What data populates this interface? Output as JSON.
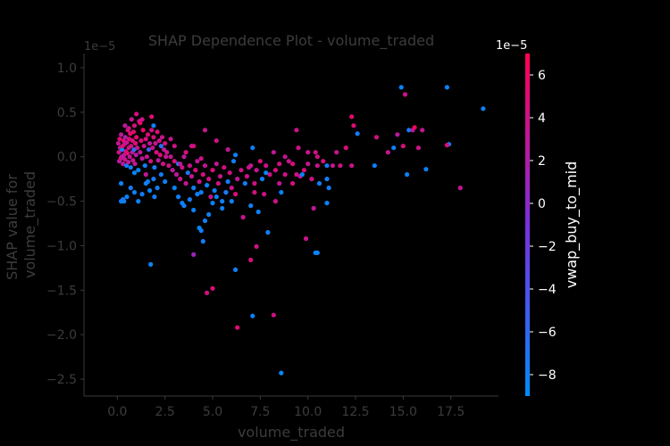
{
  "chart_data": {
    "type": "scatter",
    "title": "SHAP Dependence Plot - volume_traded",
    "xlabel": "volume_traded",
    "ylabel_line1": "SHAP value for",
    "ylabel_line2": "volume_traded",
    "y_offset_text": "1e−5",
    "xlim": [
      -1.75,
      20.0
    ],
    "ylim": [
      -2.69,
      1.16
    ],
    "x_ticks": [
      0.0,
      2.5,
      5.0,
      7.5,
      10.0,
      12.5,
      15.0,
      17.5
    ],
    "x_tick_labels": [
      "0.0",
      "2.5",
      "5.0",
      "7.5",
      "10.0",
      "12.5",
      "15.0",
      "17.5"
    ],
    "y_ticks": [
      1.0,
      0.5,
      0.0,
      -0.5,
      -1.0,
      -1.5,
      -2.0,
      -2.5
    ],
    "y_tick_labels": [
      "1.0",
      "0.5",
      "0.0",
      "−0.5",
      "−1.0",
      "−1.5",
      "−2.0",
      "−2.5"
    ],
    "grid": false,
    "colorbar": {
      "label": "vwap_buy_to_mid",
      "offset_text": "1e−5",
      "range": [
        -9.0,
        7.0
      ],
      "ticks": [
        6,
        4,
        2,
        0,
        -2,
        -4,
        -6,
        -8
      ],
      "tick_labels": [
        "6",
        "4",
        "2",
        "0",
        "−2",
        "−4",
        "−6",
        "−8"
      ],
      "colors": [
        "#008afb",
        "#7c2fdd",
        "#ff0052"
      ]
    },
    "points": [
      [
        0.05,
        0.15,
        3.2
      ],
      [
        0.08,
        0.05,
        4.1
      ],
      [
        0.1,
        -0.05,
        2.5
      ],
      [
        0.12,
        0.2,
        5.0
      ],
      [
        0.15,
        0.1,
        3.8
      ],
      [
        0.18,
        -0.02,
        4.5
      ],
      [
        0.2,
        0.25,
        2.9
      ],
      [
        0.22,
        0.0,
        3.4
      ],
      [
        0.25,
        0.08,
        -8.0
      ],
      [
        0.28,
        0.12,
        4.8
      ],
      [
        0.3,
        -0.08,
        3.0
      ],
      [
        0.33,
        0.18,
        5.5
      ],
      [
        0.35,
        0.02,
        2.2
      ],
      [
        0.38,
        0.14,
        4.0
      ],
      [
        0.4,
        -0.03,
        3.6
      ],
      [
        0.42,
        0.22,
        1.8
      ],
      [
        0.45,
        0.06,
        4.4
      ],
      [
        0.48,
        -0.1,
        -7.5
      ],
      [
        0.5,
        0.16,
        3.1
      ],
      [
        0.52,
        0.04,
        5.2
      ],
      [
        0.55,
        0.3,
        4.7
      ],
      [
        0.58,
        -0.06,
        2.6
      ],
      [
        0.6,
        0.1,
        3.9
      ],
      [
        0.62,
        0.2,
        4.9
      ],
      [
        0.65,
        0.0,
        3.3
      ],
      [
        0.68,
        0.26,
        5.8
      ],
      [
        0.7,
        -0.12,
        -8.2
      ],
      [
        0.72,
        0.12,
        4.2
      ],
      [
        0.75,
        0.42,
        3.5
      ],
      [
        0.78,
        0.05,
        2.8
      ],
      [
        0.8,
        0.18,
        4.6
      ],
      [
        0.82,
        -0.04,
        3.7
      ],
      [
        0.85,
        0.28,
        5.1
      ],
      [
        0.88,
        0.08,
        -6.8
      ],
      [
        0.9,
        0.35,
        4.3
      ],
      [
        0.92,
        -0.08,
        3.2
      ],
      [
        0.95,
        0.15,
        4.8
      ],
      [
        0.98,
        0.02,
        2.4
      ],
      [
        1.0,
        0.22,
        5.3
      ],
      [
        1.05,
        0.1,
        3.6
      ],
      [
        1.1,
        -0.15,
        -8.3
      ],
      [
        1.15,
        0.4,
        4.0
      ],
      [
        1.2,
        0.05,
        3.1
      ],
      [
        1.25,
        0.18,
        4.7
      ],
      [
        1.3,
        -0.02,
        2.9
      ],
      [
        1.35,
        0.3,
        5.6
      ],
      [
        1.4,
        0.12,
        3.8
      ],
      [
        1.45,
        -0.1,
        -7.9
      ],
      [
        1.5,
        0.2,
        4.5
      ],
      [
        1.55,
        0.0,
        3.4
      ],
      [
        1.6,
        0.25,
        4.9
      ],
      [
        1.65,
        0.08,
        -5.0
      ],
      [
        1.7,
        0.15,
        3.0
      ],
      [
        1.75,
        -0.05,
        4.2
      ],
      [
        1.8,
        0.45,
        5.2
      ],
      [
        1.85,
        0.1,
        3.7
      ],
      [
        1.9,
        0.22,
        4.6
      ],
      [
        1.95,
        -0.12,
        -8.0
      ],
      [
        2.0,
        0.15,
        3.3
      ],
      [
        2.05,
        0.05,
        4.4
      ],
      [
        2.1,
        0.28,
        5.0
      ],
      [
        2.15,
        -0.04,
        2.7
      ],
      [
        2.2,
        0.18,
        3.9
      ],
      [
        2.25,
        0.02,
        4.8
      ],
      [
        2.3,
        0.12,
        -7.0
      ],
      [
        2.35,
        0.22,
        3.5
      ],
      [
        2.4,
        -0.08,
        4.1
      ],
      [
        2.45,
        0.08,
        3.0
      ],
      [
        2.5,
        0.15,
        4.5
      ],
      [
        2.55,
        0.0,
        3.6
      ],
      [
        0.3,
        0.0,
        3.0
      ],
      [
        0.6,
        0.32,
        4.0
      ],
      [
        0.9,
        -0.18,
        -8.5
      ],
      [
        1.2,
        0.38,
        5.4
      ],
      [
        1.5,
        -0.2,
        3.2
      ],
      [
        1.8,
        0.3,
        4.1
      ],
      [
        0.4,
        0.35,
        2.8
      ],
      [
        1.0,
        0.48,
        4.7
      ],
      [
        1.3,
        0.42,
        3.9
      ],
      [
        0.2,
        -0.3,
        -8.6
      ],
      [
        0.35,
        -0.5,
        -8.4
      ],
      [
        0.5,
        -0.45,
        -8.2
      ],
      [
        0.7,
        -0.35,
        -7.8
      ],
      [
        0.9,
        -0.4,
        -8.0
      ],
      [
        1.1,
        -0.5,
        -8.3
      ],
      [
        1.3,
        -0.42,
        -7.6
      ],
      [
        1.5,
        -0.3,
        -8.1
      ],
      [
        1.7,
        -0.38,
        -8.4
      ],
      [
        1.9,
        -0.25,
        -7.9
      ],
      [
        2.1,
        -0.35,
        -8.2
      ],
      [
        2.3,
        -0.2,
        -7.7
      ],
      [
        1.6,
        -0.28,
        -8.0
      ],
      [
        2.5,
        -0.28,
        -8.0
      ],
      [
        1.75,
        -1.21,
        -8.5
      ],
      [
        1.9,
        0.35,
        -8.3
      ],
      [
        0.2,
        -0.5,
        -8.0
      ],
      [
        0.3,
        -0.48,
        -7.5
      ],
      [
        1.95,
        -0.45,
        -8.1
      ],
      [
        2.6,
        0.05,
        3.5
      ],
      [
        2.7,
        -0.1,
        4.0
      ],
      [
        2.8,
        0.0,
        3.2
      ],
      [
        2.9,
        -0.15,
        2.8
      ],
      [
        3.0,
        -0.05,
        4.5
      ],
      [
        3.1,
        -0.2,
        3.0
      ],
      [
        3.2,
        -0.08,
        -8.0
      ],
      [
        3.3,
        -0.25,
        3.8
      ],
      [
        3.4,
        -0.12,
        4.2
      ],
      [
        3.5,
        0.0,
        2.9
      ],
      [
        3.6,
        -0.3,
        3.6
      ],
      [
        3.7,
        -0.18,
        -7.2
      ],
      [
        3.8,
        -0.1,
        4.0
      ],
      [
        3.9,
        -0.22,
        3.3
      ],
      [
        4.0,
        -0.35,
        -8.1
      ],
      [
        4.1,
        -0.15,
        4.6
      ],
      [
        4.2,
        -0.05,
        3.1
      ],
      [
        4.3,
        -0.28,
        3.9
      ],
      [
        4.4,
        -0.4,
        -7.8
      ],
      [
        4.5,
        -0.2,
        4.3
      ],
      [
        4.6,
        -0.1,
        3.4
      ],
      [
        4.7,
        -0.32,
        -8.3
      ],
      [
        4.8,
        -0.25,
        4.1
      ],
      [
        4.9,
        -0.45,
        3.7
      ],
      [
        5.0,
        -0.15,
        4.8
      ],
      [
        5.1,
        -0.38,
        -7.9
      ],
      [
        5.2,
        -0.08,
        3.2
      ],
      [
        5.3,
        -0.3,
        4.0
      ],
      [
        5.4,
        -0.22,
        3.5
      ],
      [
        5.5,
        -0.5,
        -8.2
      ],
      [
        5.6,
        -0.12,
        4.4
      ],
      [
        5.7,
        -0.4,
        3.0
      ],
      [
        5.8,
        -0.28,
        -7.6
      ],
      [
        5.9,
        -0.18,
        4.2
      ],
      [
        6.0,
        -0.35,
        3.8
      ],
      [
        6.1,
        -0.05,
        -8.0
      ],
      [
        6.2,
        -0.42,
        4.6
      ],
      [
        6.3,
        -0.25,
        3.3
      ],
      [
        6.5,
        -0.15,
        4.0
      ],
      [
        6.7,
        -0.3,
        -7.5
      ],
      [
        2.8,
        0.2,
        3.6
      ],
      [
        3.0,
        0.12,
        4.1
      ],
      [
        3.3,
        -0.08,
        3.0
      ],
      [
        3.6,
        0.05,
        4.5
      ],
      [
        3.9,
        0.12,
        3.8
      ],
      [
        3.0,
        -0.35,
        -8.4
      ],
      [
        3.2,
        -0.45,
        -8.2
      ],
      [
        3.5,
        -0.55,
        -8.0
      ],
      [
        3.8,
        -0.48,
        -7.8
      ],
      [
        4.0,
        -0.6,
        -8.3
      ],
      [
        4.3,
        -0.8,
        -8.5
      ],
      [
        4.4,
        -0.83,
        -8.1
      ],
      [
        4.6,
        -0.72,
        -8.0
      ],
      [
        4.8,
        -0.65,
        -7.9
      ],
      [
        5.0,
        -0.52,
        -8.2
      ],
      [
        5.2,
        -0.45,
        -8.4
      ],
      [
        5.5,
        -0.58,
        -8.1
      ],
      [
        5.7,
        -0.4,
        -7.7
      ],
      [
        6.0,
        -0.5,
        -8.3
      ],
      [
        3.4,
        -0.52,
        -8.2
      ],
      [
        4.2,
        -0.42,
        -8.0
      ],
      [
        4.5,
        -0.95,
        -7.8
      ],
      [
        4.6,
        0.3,
        3.5
      ],
      [
        5.2,
        0.18,
        4.0
      ],
      [
        5.8,
        0.08,
        3.2
      ],
      [
        6.2,
        0.02,
        -8.0
      ],
      [
        4.0,
        0.12,
        4.3
      ],
      [
        4.4,
        -0.02,
        3.9
      ],
      [
        7.0,
        -0.1,
        3.5
      ],
      [
        7.1,
        0.1,
        -8.0
      ],
      [
        7.2,
        -0.3,
        4.0
      ],
      [
        7.3,
        -0.15,
        3.2
      ],
      [
        7.5,
        -0.05,
        4.5
      ],
      [
        7.6,
        -0.25,
        -7.8
      ],
      [
        7.8,
        -0.1,
        3.8
      ],
      [
        8.0,
        -0.2,
        4.2
      ],
      [
        8.2,
        0.05,
        3.0
      ],
      [
        8.3,
        -0.15,
        4.6
      ],
      [
        8.5,
        -0.3,
        3.4
      ],
      [
        8.6,
        -0.4,
        -8.2
      ],
      [
        8.8,
        -0.2,
        4.1
      ],
      [
        9.0,
        -0.05,
        3.6
      ],
      [
        9.2,
        -0.3,
        4.4
      ],
      [
        9.4,
        0.3,
        3.9
      ],
      [
        9.6,
        -0.22,
        3.1
      ],
      [
        9.8,
        -0.15,
        4.8
      ],
      [
        10.0,
        -0.08,
        3.5
      ],
      [
        10.2,
        -0.25,
        4.0
      ],
      [
        10.4,
        0.05,
        4.3
      ],
      [
        10.5,
        -0.1,
        3.7
      ],
      [
        10.6,
        -0.3,
        -8.0
      ],
      [
        10.8,
        -0.05,
        4.5
      ],
      [
        7.0,
        -0.55,
        -8.1
      ],
      [
        7.4,
        -0.62,
        -8.3
      ],
      [
        7.9,
        -0.85,
        -8.0
      ],
      [
        7.8,
        -0.18,
        -8.4
      ],
      [
        9.7,
        -0.2,
        -8.0
      ],
      [
        11.0,
        -0.52,
        -8.3
      ],
      [
        11.1,
        -0.35,
        -7.9
      ],
      [
        11.0,
        -0.25,
        -8.1
      ],
      [
        10.4,
        -1.08,
        -8.2
      ],
      [
        10.5,
        -1.08,
        -8.4
      ],
      [
        11.0,
        -0.1,
        -7.8
      ],
      [
        6.6,
        -0.68,
        3.5
      ],
      [
        7.0,
        -1.16,
        4.5
      ],
      [
        7.3,
        -1.01,
        4.0
      ],
      [
        6.3,
        -1.92,
        5.2
      ],
      [
        5.0,
        -1.48,
        4.8
      ],
      [
        4.7,
        -1.53,
        4.5
      ],
      [
        8.2,
        -1.78,
        4.2
      ],
      [
        9.9,
        -0.92,
        3.8
      ],
      [
        10.3,
        -0.58,
        3.0
      ],
      [
        7.1,
        -1.79,
        -8.3
      ],
      [
        6.2,
        -1.27,
        -8.1
      ],
      [
        8.6,
        -2.43,
        -8.6
      ],
      [
        4.0,
        -1.1,
        1.0
      ],
      [
        9.2,
        -0.08,
        4.5
      ],
      [
        9.5,
        0.1,
        4.0
      ],
      [
        10.0,
        0.05,
        3.6
      ],
      [
        10.5,
        0.0,
        4.2
      ],
      [
        11.5,
        0.05,
        3.3
      ],
      [
        12.0,
        0.1,
        4.8
      ],
      [
        11.3,
        -0.1,
        3.5
      ],
      [
        11.7,
        -0.1,
        4.0
      ],
      [
        12.3,
        -0.1,
        3.9
      ],
      [
        12.3,
        0.45,
        5.5
      ],
      [
        12.4,
        0.35,
        4.9
      ],
      [
        12.6,
        0.26,
        -8.0
      ],
      [
        13.5,
        -0.1,
        -8.1
      ],
      [
        13.6,
        0.22,
        4.3
      ],
      [
        14.2,
        0.05,
        3.5
      ],
      [
        14.5,
        0.1,
        -8.2
      ],
      [
        14.7,
        0.25,
        2.6
      ],
      [
        14.9,
        0.78,
        -8.4
      ],
      [
        15.0,
        0.12,
        4.5
      ],
      [
        15.1,
        0.7,
        3.8
      ],
      [
        15.2,
        -0.2,
        -8.1
      ],
      [
        15.3,
        0.3,
        -7.6
      ],
      [
        15.5,
        0.3,
        3.0
      ],
      [
        15.6,
        0.33,
        6.5
      ],
      [
        15.8,
        0.1,
        4.0
      ],
      [
        16.0,
        0.3,
        3.3
      ],
      [
        16.2,
        -0.14,
        -8.0
      ],
      [
        17.3,
        0.78,
        -8.3
      ],
      [
        17.4,
        0.14,
        -8.1
      ],
      [
        17.3,
        0.13,
        4.6
      ],
      [
        18.0,
        -0.35,
        3.4
      ],
      [
        19.2,
        0.54,
        -8.2
      ],
      [
        9.4,
        -0.2,
        4.1
      ],
      [
        8.8,
        0.0,
        3.2
      ],
      [
        8.5,
        -0.08,
        4.4
      ],
      [
        6.8,
        -0.22,
        4.0
      ],
      [
        6.9,
        -0.12,
        3.6
      ],
      [
        7.2,
        -0.4,
        4.3
      ],
      [
        8.3,
        -0.5,
        3.9
      ],
      [
        7.7,
        -0.42,
        4.1
      ]
    ]
  }
}
